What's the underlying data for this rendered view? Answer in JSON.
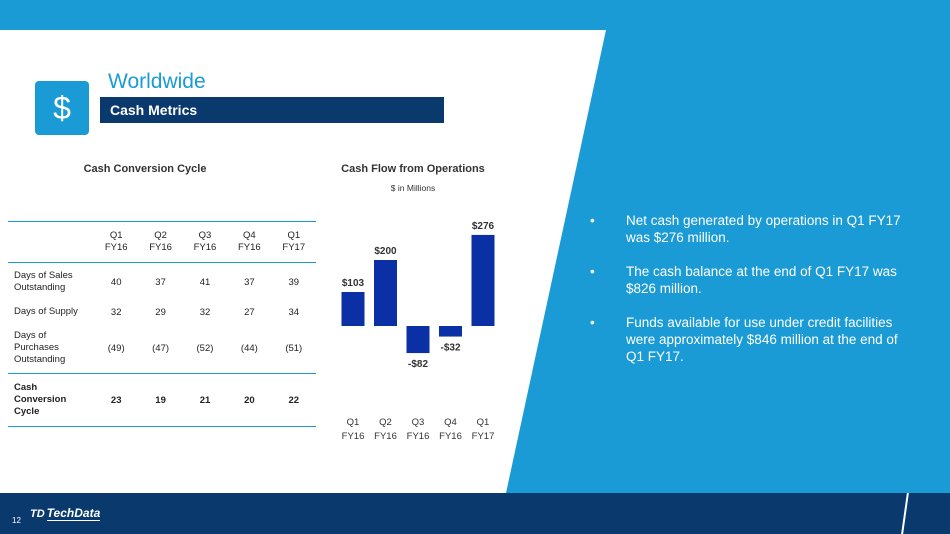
{
  "header": {
    "title": "Worldwide",
    "subtitle": "Cash Metrics",
    "icon": "dollar-icon",
    "icon_glyph": "$"
  },
  "ccc": {
    "title": "Cash Conversion Cycle",
    "columns": [
      {
        "q": "Q1",
        "fy": "FY16"
      },
      {
        "q": "Q2",
        "fy": "FY16"
      },
      {
        "q": "Q3",
        "fy": "FY16"
      },
      {
        "q": "Q4",
        "fy": "FY16"
      },
      {
        "q": "Q1",
        "fy": "FY17"
      }
    ],
    "rows": [
      {
        "label": [
          "Days of Sales",
          "Outstanding"
        ],
        "values": [
          "40",
          "37",
          "41",
          "37",
          "39"
        ]
      },
      {
        "label": [
          "Days of Supply"
        ],
        "values": [
          "32",
          "29",
          "32",
          "27",
          "34"
        ]
      },
      {
        "label": [
          "Days of",
          "Purchases",
          "Outstanding"
        ],
        "values": [
          "(49)",
          "(47)",
          "(52)",
          "(44)",
          "(51)"
        ]
      },
      {
        "label": [
          "Cash",
          "Conversion",
          "Cycle"
        ],
        "values": [
          "23",
          "19",
          "21",
          "20",
          "22"
        ]
      }
    ]
  },
  "chart_data": {
    "type": "bar",
    "title": "Cash Flow from Operations",
    "subtitle": "$ in Millions",
    "categories": [
      [
        "Q1",
        "FY16"
      ],
      [
        "Q2",
        "FY16"
      ],
      [
        "Q3",
        "FY16"
      ],
      [
        "Q4",
        "FY16"
      ],
      [
        "Q1",
        "FY17"
      ]
    ],
    "values": [
      103,
      200,
      -82,
      -32,
      276
    ],
    "labels": [
      "$103",
      "$200",
      "-$82",
      "-$32",
      "$276"
    ],
    "bar_color": "#0b2fa5",
    "ylim": [
      -100,
      300
    ],
    "grid": false
  },
  "bullets": [
    "Net cash generated by operations in Q1 FY17 was $276 million.",
    "The cash balance at the end of Q1 FY17 was $826 million.",
    "Funds available for use under credit facilities were approximately $846 million at the end of Q1 FY17."
  ],
  "bullet_glyph": "•",
  "footer": {
    "page": "12",
    "logo_text": "TechData",
    "logo_mark": "TD"
  },
  "colors": {
    "accent": "#1a9bd5",
    "navy": "#0a3a6d",
    "bar": "#0b2fa5"
  }
}
